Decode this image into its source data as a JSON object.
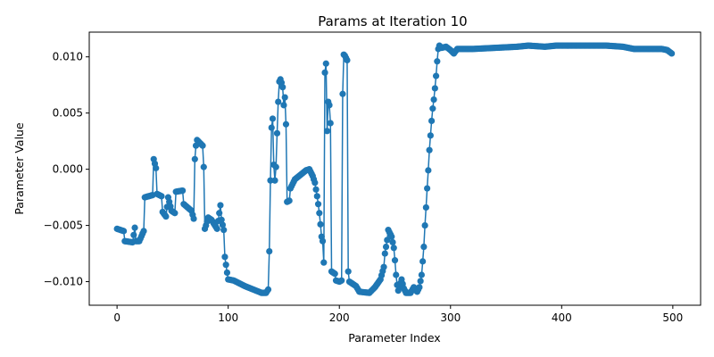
{
  "chart_data": {
    "type": "line",
    "title": "Params at Iteration 10",
    "xlabel": "Parameter Index",
    "ylabel": "Parameter Value",
    "xlim": [
      -25,
      525
    ],
    "ylim": [
      -0.0121,
      0.0122
    ],
    "xticks": [
      0,
      100,
      200,
      300,
      400,
      500
    ],
    "xtick_labels": [
      "0",
      "100",
      "200",
      "300",
      "400",
      "500"
    ],
    "yticks": [
      -0.01,
      -0.005,
      0.0,
      0.005,
      0.01
    ],
    "ytick_labels": [
      "−0.010",
      "−0.005",
      "0.000",
      "0.005",
      "0.010"
    ],
    "grid": false,
    "series": [
      {
        "color": "#1f77b4",
        "marker": "circle",
        "anchors": [
          [
            0,
            -0.0053
          ],
          [
            6,
            -0.0055
          ],
          [
            7,
            -0.0064
          ],
          [
            14,
            -0.0065
          ],
          [
            16,
            -0.0052
          ],
          [
            17,
            -0.0064
          ],
          [
            20,
            -0.0064
          ],
          [
            24,
            -0.0055
          ],
          [
            25,
            -0.0025
          ],
          [
            32,
            -0.0023
          ],
          [
            33,
            0.0009
          ],
          [
            35,
            0.0001
          ],
          [
            36,
            -0.0022
          ],
          [
            40,
            -0.0024
          ],
          [
            41,
            -0.0038
          ],
          [
            44,
            -0.0042
          ],
          [
            46,
            -0.0025
          ],
          [
            49,
            -0.0037
          ],
          [
            52,
            -0.0039
          ],
          [
            53,
            -0.002
          ],
          [
            59,
            -0.0019
          ],
          [
            60,
            -0.0031
          ],
          [
            67,
            -0.0037
          ],
          [
            69,
            -0.0044
          ],
          [
            70,
            0.0009
          ],
          [
            71,
            0.0021
          ],
          [
            72,
            0.0026
          ],
          [
            77,
            0.0021
          ],
          [
            78,
            0.0002
          ],
          [
            79,
            -0.0053
          ],
          [
            80,
            -0.005
          ],
          [
            82,
            -0.0043
          ],
          [
            85,
            -0.0045
          ],
          [
            90,
            -0.0053
          ],
          [
            92,
            -0.0039
          ],
          [
            93,
            -0.0032
          ],
          [
            94,
            -0.0045
          ],
          [
            96,
            -0.0054
          ],
          [
            97,
            -0.0078
          ],
          [
            99,
            -0.0092
          ],
          [
            100,
            -0.0098
          ],
          [
            105,
            -0.0099
          ],
          [
            115,
            -0.0104
          ],
          [
            125,
            -0.0108
          ],
          [
            130,
            -0.011
          ],
          [
            134,
            -0.011
          ],
          [
            136,
            -0.0107
          ],
          [
            137,
            -0.0073
          ],
          [
            138,
            -0.001
          ],
          [
            139,
            0.0037
          ],
          [
            140,
            0.0045
          ],
          [
            141,
            0.0004
          ],
          [
            142,
            -0.001
          ],
          [
            143,
            0.0002
          ],
          [
            144,
            0.0032
          ],
          [
            145,
            0.006
          ],
          [
            146,
            0.0078
          ],
          [
            147,
            0.008
          ],
          [
            148,
            0.0077
          ],
          [
            149,
            0.0073
          ],
          [
            150,
            0.0057
          ],
          [
            151,
            0.0064
          ],
          [
            152,
            0.004
          ],
          [
            153,
            -0.0029
          ],
          [
            155,
            -0.0028
          ],
          [
            156,
            -0.0017
          ],
          [
            160,
            -0.0009
          ],
          [
            165,
            -0.0005
          ],
          [
            170,
            -0.0001
          ],
          [
            173,
            0.0
          ],
          [
            176,
            -0.0006
          ],
          [
            178,
            -0.0012
          ],
          [
            180,
            -0.0024
          ],
          [
            181,
            -0.0031
          ],
          [
            182,
            -0.0039
          ],
          [
            183,
            -0.0049
          ],
          [
            184,
            -0.006
          ],
          [
            185,
            -0.0064
          ],
          [
            186,
            -0.0083
          ],
          [
            187,
            0.0086
          ],
          [
            188,
            0.0094
          ],
          [
            189,
            0.0034
          ],
          [
            190,
            0.006
          ],
          [
            191,
            0.0057
          ],
          [
            192,
            0.0041
          ],
          [
            193,
            -0.0091
          ],
          [
            196,
            -0.0093
          ],
          [
            197,
            -0.0099
          ],
          [
            200,
            -0.01
          ],
          [
            202,
            -0.0099
          ],
          [
            203,
            0.0067
          ],
          [
            204,
            0.0102
          ],
          [
            205,
            0.0101
          ],
          [
            206,
            0.0099
          ],
          [
            207,
            0.0097
          ],
          [
            208,
            -0.0091
          ],
          [
            209,
            -0.01
          ],
          [
            215,
            -0.0104
          ],
          [
            218,
            -0.0109
          ],
          [
            227,
            -0.011
          ],
          [
            232,
            -0.0105
          ],
          [
            237,
            -0.0098
          ],
          [
            240,
            -0.0087
          ],
          [
            241,
            -0.0075
          ],
          [
            243,
            -0.0063
          ],
          [
            244,
            -0.0054
          ],
          [
            247,
            -0.006
          ],
          [
            249,
            -0.007
          ],
          [
            250,
            -0.0081
          ],
          [
            251,
            -0.0094
          ],
          [
            252,
            -0.0103
          ],
          [
            253,
            -0.0108
          ],
          [
            256,
            -0.0098
          ],
          [
            258,
            -0.0106
          ],
          [
            260,
            -0.011
          ],
          [
            264,
            -0.011
          ],
          [
            267,
            -0.0105
          ],
          [
            270,
            -0.0109
          ],
          [
            272,
            -0.0105
          ],
          [
            274,
            -0.0094
          ],
          [
            275,
            -0.0082
          ],
          [
            276,
            -0.0069
          ],
          [
            277,
            -0.005
          ],
          [
            278,
            -0.0034
          ],
          [
            279,
            -0.0017
          ],
          [
            280,
            -0.0001
          ],
          [
            281,
            0.0017
          ],
          [
            282,
            0.003
          ],
          [
            283,
            0.0043
          ],
          [
            284,
            0.0054
          ],
          [
            285,
            0.0062
          ],
          [
            286,
            0.0072
          ],
          [
            287,
            0.0083
          ],
          [
            288,
            0.0096
          ],
          [
            289,
            0.0107
          ],
          [
            290,
            0.011
          ],
          [
            292,
            0.0108
          ],
          [
            296,
            0.0109
          ],
          [
            300,
            0.0106
          ],
          [
            303,
            0.0103
          ],
          [
            306,
            0.0107
          ],
          [
            320,
            0.0107
          ],
          [
            340,
            0.0108
          ],
          [
            360,
            0.0109
          ],
          [
            370,
            0.011
          ],
          [
            385,
            0.0109
          ],
          [
            395,
            0.011
          ],
          [
            410,
            0.011
          ],
          [
            425,
            0.011
          ],
          [
            440,
            0.011
          ],
          [
            455,
            0.0109
          ],
          [
            465,
            0.0107
          ],
          [
            475,
            0.0107
          ],
          [
            490,
            0.0107
          ],
          [
            495,
            0.0106
          ],
          [
            499,
            0.0103
          ]
        ]
      }
    ]
  }
}
